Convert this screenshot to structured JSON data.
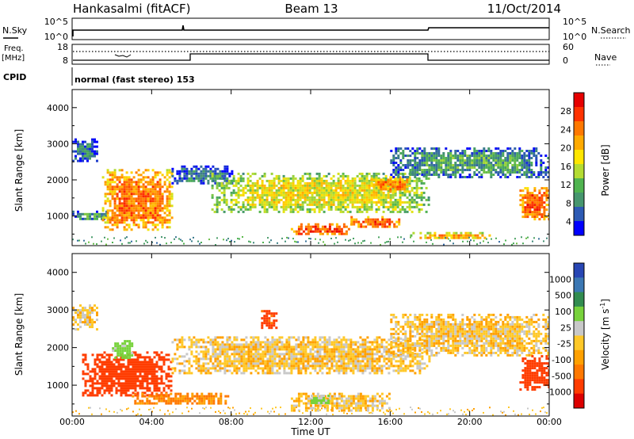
{
  "header": {
    "station": "Hankasalmi (fitACF)",
    "beam": "Beam 13",
    "date": "11/Oct/2014"
  },
  "sky_panel": {
    "left_label": "N.Sky",
    "left_ticks": [
      "10^5",
      "10^0"
    ],
    "right_ticks": [
      "10^5",
      "10^0"
    ],
    "right_label": "N.Search"
  },
  "freq_panel": {
    "left_label_1": "Freq.",
    "left_label_2": "[MHz]",
    "left_ticks": [
      "18",
      "8"
    ],
    "right_ticks": [
      "60",
      "0"
    ],
    "right_label": "Nave"
  },
  "cpid_panel": {
    "left_label": "CPID",
    "mode_text": "normal (fast stereo) 153"
  },
  "x_axis": {
    "label": "Time UT",
    "ticks": [
      "00:00",
      "04:00",
      "08:00",
      "12:00",
      "16:00",
      "20:00",
      "00:00"
    ]
  },
  "power_colorbar": {
    "label": "Power [dB]",
    "labels": [
      "28",
      "24",
      "20",
      "16",
      "12",
      "8",
      "4"
    ],
    "colors": [
      "#e60000",
      "#ff3200",
      "#ff7800",
      "#ffaa00",
      "#ffe600",
      "#b4dc32",
      "#50b450",
      "#46966e",
      "#2d5ab4",
      "#0000ff"
    ]
  },
  "velocity_colorbar": {
    "label_main": "Velocity [m s",
    "label_sup": "-1",
    "label_end": "]",
    "labels": [
      "1000",
      "500",
      "100",
      "25",
      "-25",
      "-100",
      "-500",
      "-1000"
    ],
    "colors": [
      "#2846b4",
      "#3c78b4",
      "#328c50",
      "#78d23c",
      "#c8c8c8",
      "#ffc828",
      "#ffa000",
      "#ff7800",
      "#ff3c00",
      "#dc0000"
    ]
  },
  "chart_data": [
    {
      "type": "heatmap",
      "title": "Power",
      "xlabel": "Time UT",
      "ylabel": "Slant Range [km]",
      "xlim": [
        0,
        24
      ],
      "ylim": [
        180,
        4500
      ],
      "yticks": [
        1000,
        2000,
        3000,
        4000
      ],
      "colorbar": {
        "label": "Power [dB]",
        "range": [
          0,
          32
        ]
      },
      "echo_bands": [
        {
          "t": [
            0,
            1.2
          ],
          "range_km": [
            2500,
            3150
          ],
          "power_db": 6
        },
        {
          "t": [
            0,
            2
          ],
          "range_km": [
            900,
            1150
          ],
          "power_db": 8
        },
        {
          "t": [
            1.5,
            5
          ],
          "range_km": [
            600,
            2300
          ],
          "power_db": 25
        },
        {
          "t": [
            5,
            8
          ],
          "range_km": [
            1900,
            2400
          ],
          "power_db": 6
        },
        {
          "t": [
            7,
            18
          ],
          "range_km": [
            1100,
            2200
          ],
          "power_db": 17
        },
        {
          "t": [
            11,
            14
          ],
          "range_km": [
            500,
            800
          ],
          "power_db": 28
        },
        {
          "t": [
            14,
            16.5
          ],
          "range_km": [
            700,
            1000
          ],
          "power_db": 27
        },
        {
          "t": [
            15,
            17
          ],
          "range_km": [
            1700,
            2100
          ],
          "power_db": 24
        },
        {
          "t": [
            17,
            21
          ],
          "range_km": [
            400,
            560
          ],
          "power_db": 22
        },
        {
          "t": [
            16,
            24
          ],
          "range_km": [
            2100,
            2900
          ],
          "power_db": 9
        },
        {
          "t": [
            22.5,
            24
          ],
          "range_km": [
            900,
            1800
          ],
          "power_db": 27
        }
      ]
    },
    {
      "type": "heatmap",
      "title": "Velocity",
      "xlabel": "Time UT",
      "ylabel": "Slant Range [km]",
      "xlim": [
        0,
        24
      ],
      "ylim": [
        180,
        4500
      ],
      "yticks": [
        1000,
        2000,
        3000,
        4000
      ],
      "colorbar": {
        "label": "Velocity [m s-1]",
        "range": [
          -1000,
          1000
        ]
      },
      "echo_bands": [
        {
          "t": [
            0,
            1.2
          ],
          "range_km": [
            2500,
            3150
          ],
          "velocity_ms": 0
        },
        {
          "t": [
            0.5,
            5
          ],
          "range_km": [
            700,
            1900
          ],
          "velocity_ms": -400
        },
        {
          "t": [
            2,
            3
          ],
          "range_km": [
            1700,
            2200
          ],
          "velocity_ms": 150
        },
        {
          "t": [
            5,
            18
          ],
          "range_km": [
            1300,
            2300
          ],
          "velocity_ms": 0
        },
        {
          "t": [
            11,
            16
          ],
          "range_km": [
            350,
            800
          ],
          "velocity_ms": 0
        },
        {
          "t": [
            12,
            13
          ],
          "range_km": [
            500,
            750
          ],
          "velocity_ms": 120
        },
        {
          "t": [
            3,
            8
          ],
          "range_km": [
            500,
            800
          ],
          "velocity_ms": -120
        },
        {
          "t": [
            16,
            24
          ],
          "range_km": [
            1800,
            2900
          ],
          "velocity_ms": 0
        },
        {
          "t": [
            22.5,
            24
          ],
          "range_km": [
            900,
            1800
          ],
          "velocity_ms": -400
        },
        {
          "t": [
            9.5,
            10.3
          ],
          "range_km": [
            2500,
            3000
          ],
          "velocity_ms": -300
        }
      ]
    }
  ]
}
